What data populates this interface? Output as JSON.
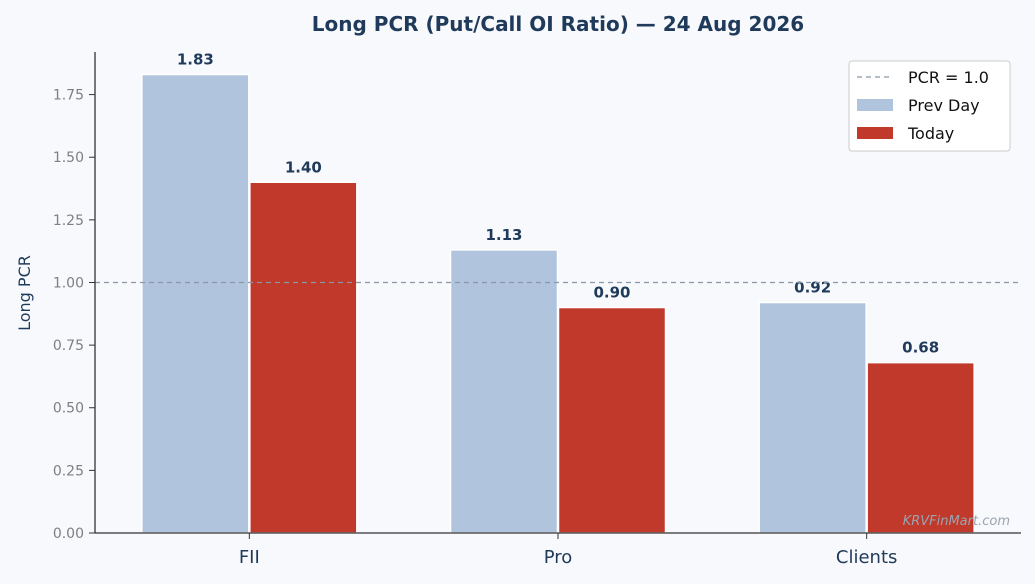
{
  "chart_data": {
    "type": "bar",
    "title": "Long PCR (Put/Call OI Ratio) — 24 Aug 2026",
    "xlabel": "",
    "ylabel": "Long PCR",
    "categories": [
      "FII",
      "Pro",
      "Clients"
    ],
    "series": [
      {
        "name": "Prev Day",
        "values": [
          1.83,
          1.13,
          0.92
        ],
        "color": "#b0c4de"
      },
      {
        "name": "Today",
        "values": [
          1.4,
          0.9,
          0.68
        ],
        "color": "#c0392b"
      }
    ],
    "data_labels": [
      [
        "1.83",
        "1.13",
        "0.92"
      ],
      [
        "1.40",
        "0.90",
        "0.68"
      ]
    ],
    "ylim": [
      0,
      1.92
    ],
    "yticks": [
      0.0,
      0.25,
      0.5,
      0.75,
      1.0,
      1.25,
      1.5,
      1.75
    ],
    "ytick_labels": [
      "0.00",
      "0.25",
      "0.50",
      "0.75",
      "1.00",
      "1.25",
      "1.50",
      "1.75"
    ],
    "reference_line": {
      "value": 1.0,
      "label": "PCR = 1.0",
      "color": "#8a97a8"
    },
    "legend_position": "top-right",
    "grid": false
  },
  "watermark": "KRVFinMart.com"
}
